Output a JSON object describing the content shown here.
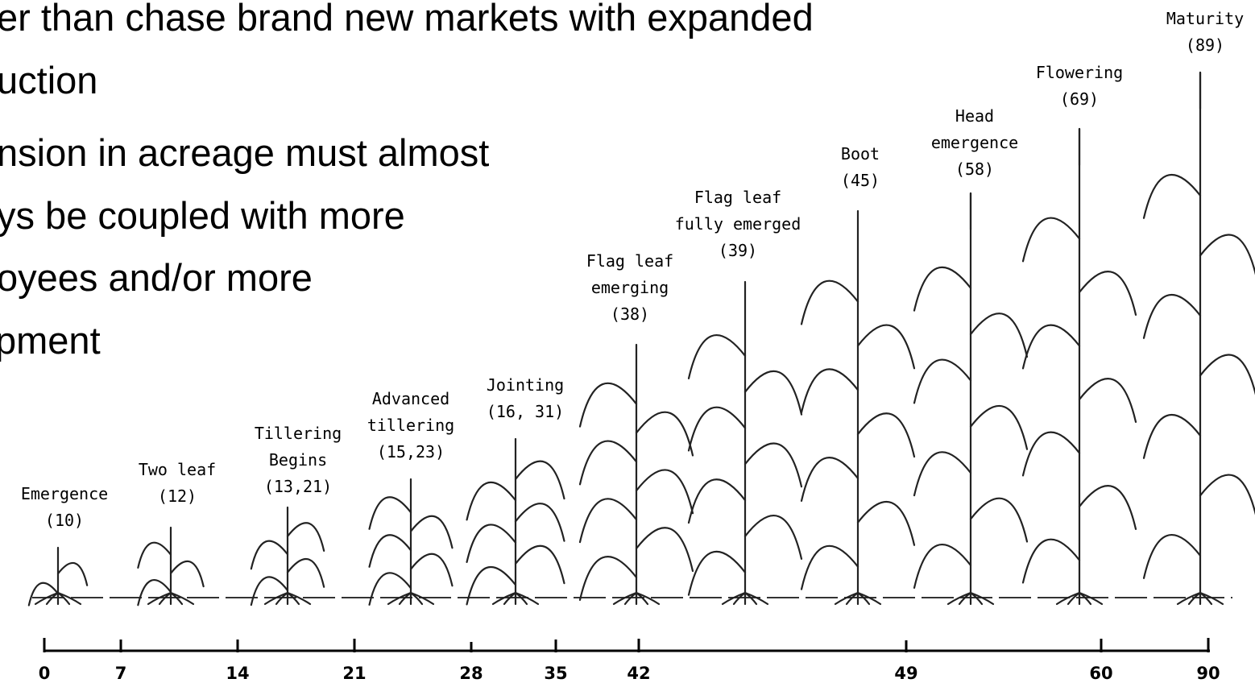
{
  "slide_text": {
    "lines": [
      "er than chase brand new markets with expanded",
      "uction",
      "nsion in acreage must almost",
      "ys be coupled with more",
      "oyees and/or more",
      "pment"
    ]
  },
  "stages": [
    {
      "label": [
        "Emergence",
        "(10)"
      ]
    },
    {
      "label": [
        "Two leaf",
        "(12)"
      ]
    },
    {
      "label": [
        "Tillering",
        "Begins",
        "(13,21)"
      ]
    },
    {
      "label": [
        "Advanced",
        "tillering",
        "(15,23)"
      ]
    },
    {
      "label": [
        "Jointing",
        "(16, 31)"
      ]
    },
    {
      "label": [
        "Flag leaf",
        "emerging",
        "(38)"
      ]
    },
    {
      "label": [
        "Flag leaf",
        "fully emerged",
        "(39)"
      ]
    },
    {
      "label": [
        "Boot",
        "(45)"
      ]
    },
    {
      "label": [
        "Head",
        "emergence",
        "(58)"
      ]
    },
    {
      "label": [
        "Flowering",
        "(69)"
      ]
    },
    {
      "label": [
        "Maturity",
        "(89)"
      ]
    }
  ],
  "timeline": {
    "ticks": [
      "0",
      "7",
      "14",
      "21",
      "28",
      "35",
      "42",
      "49",
      "60",
      "90"
    ]
  }
}
